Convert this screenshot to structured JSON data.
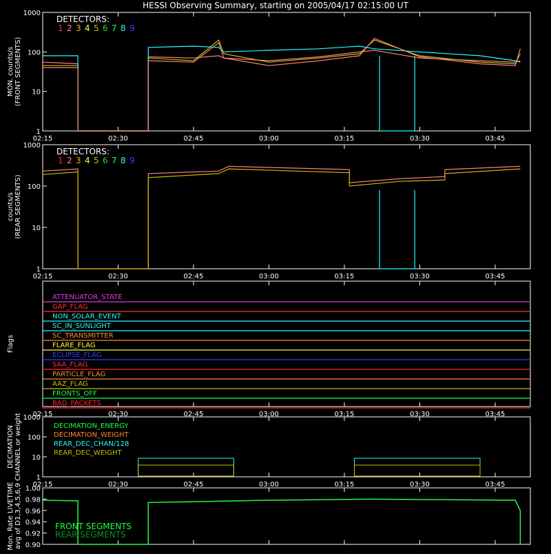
{
  "title": "HESSI Observing Summary, starting on 2005/04/17 02:15:00 UT",
  "x_ticks": [
    "02:15",
    "02:30",
    "02:45",
    "03:00",
    "03:15",
    "03:30",
    "03:45"
  ],
  "colors": {
    "axis": "#ffffff",
    "det": [
      "#ff3030",
      "#ff8080",
      "#ffaa00",
      "#ffff40",
      "#c8c000",
      "#33cc33",
      "#20ff80",
      "#20ffff",
      "#3040ff"
    ]
  },
  "chart_data": [
    {
      "type": "line",
      "name": "front",
      "ylabel_lines": [
        "MON. counts/s",
        "(FRONT SEGMENTS)"
      ],
      "ylog": true,
      "ylim": [
        1,
        1000
      ],
      "y_ticks": [
        "1",
        "10",
        "100",
        "1000"
      ],
      "legend_title": "DETECTORS:",
      "legend_numbers": [
        "1",
        "2",
        "3",
        "4",
        "5",
        "6",
        "7",
        "8",
        "9"
      ],
      "series": [
        {
          "values_x": [
            "02:15",
            "02:22",
            "02:22",
            "02:36",
            "02:36",
            "02:45",
            "02:50",
            "02:51",
            "03:00",
            "03:10",
            "03:18",
            "03:21",
            "03:30",
            "03:42",
            "03:49",
            "03:50"
          ],
          "values": [
            55,
            50,
            1,
            1,
            75,
            70,
            80,
            70,
            60,
            75,
            100,
            110,
            70,
            60,
            55,
            60
          ]
        },
        {
          "values_x": [
            "02:15",
            "02:22",
            "02:22",
            "02:36",
            "02:36",
            "02:45",
            "02:50",
            "02:51",
            "03:00",
            "03:10",
            "03:18",
            "03:21",
            "03:30",
            "03:42",
            "03:49",
            "03:50"
          ],
          "values": [
            45,
            45,
            1,
            1,
            70,
            60,
            200,
            90,
            55,
            70,
            90,
            200,
            80,
            55,
            50,
            90
          ]
        },
        {
          "values_x": [
            "02:15",
            "02:22",
            "02:22",
            "02:36",
            "02:36",
            "02:45",
            "02:50",
            "02:51",
            "03:00",
            "03:10",
            "03:18",
            "03:21",
            "03:30",
            "03:42",
            "03:49",
            "03:50"
          ],
          "values": [
            80,
            80,
            1,
            1,
            130,
            140,
            130,
            100,
            110,
            120,
            140,
            120,
            100,
            80,
            60,
            55
          ]
        },
        {
          "values_x": [
            "02:15",
            "02:22",
            "02:22",
            "02:36",
            "02:36",
            "02:45",
            "02:50",
            "02:51",
            "03:00",
            "03:10",
            "03:18",
            "03:21",
            "03:30",
            "03:42",
            "03:49",
            "03:50"
          ],
          "values": [
            40,
            40,
            1,
            1,
            60,
            55,
            170,
            70,
            45,
            60,
            80,
            220,
            75,
            50,
            45,
            120
          ]
        }
      ]
    },
    {
      "type": "line",
      "name": "rear",
      "ylabel_lines": [
        "counts/s",
        "(REAR SEGMENTS)"
      ],
      "ylog": true,
      "ylim": [
        1,
        1000
      ],
      "y_ticks": [
        "1",
        "10",
        "100",
        "1000"
      ],
      "legend_title": "DETECTORS:",
      "legend_numbers": [
        "1",
        "2",
        "3",
        "4",
        "5",
        "6",
        "7",
        "8",
        "9"
      ],
      "series": [
        {
          "values_x": [
            "02:15",
            "02:22",
            "02:22",
            "02:36",
            "02:36",
            "02:50",
            "02:52",
            "03:16",
            "03:16",
            "03:26",
            "03:35",
            "03:35",
            "03:50"
          ],
          "values": [
            230,
            260,
            1,
            1,
            200,
            230,
            300,
            250,
            120,
            150,
            170,
            250,
            300
          ]
        },
        {
          "values_x": [
            "02:15",
            "02:22",
            "02:22",
            "02:36",
            "02:36",
            "02:50",
            "02:52",
            "03:16",
            "03:16",
            "03:26",
            "03:35",
            "03:35",
            "03:50"
          ],
          "values": [
            190,
            220,
            1,
            1,
            160,
            200,
            260,
            210,
            100,
            130,
            140,
            200,
            260
          ]
        }
      ]
    },
    {
      "type": "flags",
      "name": "flags",
      "ylabel_lines": [
        "Flags"
      ],
      "flags": [
        {
          "label": "ATTENUATOR_STATE",
          "color": "#e040e0"
        },
        {
          "label": "GAP_FLAG",
          "color": "#ff3030"
        },
        {
          "label": "NON_SOLAR_EVENT",
          "color": "#20ffff"
        },
        {
          "label": "SC_IN_SUNLIGHT",
          "color": "#20ffff"
        },
        {
          "label": "SC_TRANSMITTER",
          "color": "#ff8830"
        },
        {
          "label": "FLARE_FLAG",
          "color": "#ffff40"
        },
        {
          "label": "ECLIPSE_FLAG",
          "color": "#3040ff"
        },
        {
          "label": "SAA_FLAG",
          "color": "#ff3030"
        },
        {
          "label": "PARTICLE_FLAG",
          "color": "#ff8830"
        },
        {
          "label": "AAZ_FLAG",
          "color": "#c8c000"
        },
        {
          "label": "FRONTS_OFF",
          "color": "#20ff40"
        },
        {
          "label": "BAD_PACKETS",
          "color": "#ff2020"
        }
      ]
    },
    {
      "type": "line",
      "name": "decimation",
      "ylabel_lines": [
        "DECIMATION",
        "CHANNEL or weight"
      ],
      "ylog": true,
      "ylim": [
        1,
        1000
      ],
      "y_ticks": [
        "1",
        "10",
        "100",
        "1000"
      ],
      "legend": [
        {
          "label": "DECIMATION_ENERGY",
          "color": "#20ff40"
        },
        {
          "label": "DECIMATION_WEIGHT",
          "color": "#ff8830"
        },
        {
          "label": "REAR_DEC_CHAN/128",
          "color": "#20ffff"
        },
        {
          "label": "REAR_DEC_WEIGHT",
          "color": "#c8c000"
        }
      ]
    },
    {
      "type": "line",
      "name": "livetime",
      "ylabel_lines": [
        "Mon. Rate LIVETIME",
        "avg of D1,3,4,5,6,9"
      ],
      "ylim": [
        0.9,
        1.0
      ],
      "y_ticks": [
        "0.90",
        "0.92",
        "0.94",
        "0.96",
        "0.98",
        "1.00"
      ],
      "legend": [
        {
          "label": "FRONT SEGMENTS",
          "color": "#20ff40"
        },
        {
          "label": "REAR SEGMENTS",
          "color": "#109020"
        }
      ]
    }
  ]
}
